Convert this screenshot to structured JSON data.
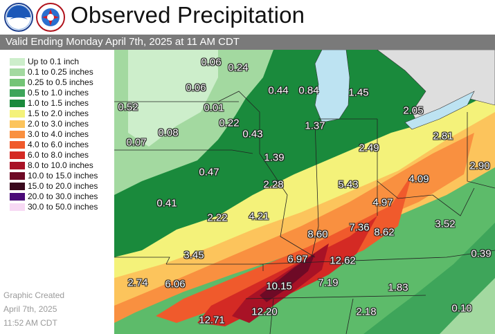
{
  "header": {
    "title": "Observed Precipitation",
    "logo_left_icon": "noaa-logo-icon",
    "logo_right_icon": "nws-logo-icon"
  },
  "valid_bar": {
    "text": "Valid Ending Monday April 7th, 2025 at 11 AM CDT"
  },
  "legend": {
    "items": [
      {
        "label": "Up to 0.1 inch",
        "color": "#cdeecb"
      },
      {
        "label": "0.1 to 0.25 inches",
        "color": "#a3d9a0"
      },
      {
        "label": "0.25 to 0.5 inches",
        "color": "#74c476"
      },
      {
        "label": "0.5 to 1.0 inches",
        "color": "#3ea55a"
      },
      {
        "label": "1.0 to 1.5 inches",
        "color": "#1a8a3c"
      },
      {
        "label": "1.5 to 2.0 inches",
        "color": "#f4f27a"
      },
      {
        "label": "2.0 to 3.0 inches",
        "color": "#fcc45c"
      },
      {
        "label": "3.0 to 4.0 inches",
        "color": "#f99040"
      },
      {
        "label": "4.0 to 6.0 inches",
        "color": "#f05a2c"
      },
      {
        "label": "6.0 to 8.0 inches",
        "color": "#d42a24"
      },
      {
        "label": "8.0 to 10.0 inches",
        "color": "#a81226"
      },
      {
        "label": "10.0 to 15.0 inches",
        "color": "#6e0a26"
      },
      {
        "label": "15.0 to 20.0 inches",
        "color": "#3a0a1e"
      },
      {
        "label": "20.0 to 30.0 inches",
        "color": "#4a0a78"
      },
      {
        "label": "30.0 to 50.0 inches",
        "color": "#f7d9f4"
      }
    ]
  },
  "credit": {
    "line1": "Graphic Created",
    "line2": "April 7th, 2025",
    "line3": "11:52 AM CDT"
  },
  "map": {
    "lake_color": "#bde3f2",
    "canada_color": "#dedede",
    "values": [
      "0.06",
      "0.24",
      "0.06",
      "0.44",
      "0.84",
      "1.45",
      "0.52",
      "0.01",
      "2.05",
      "0.22",
      "1.37",
      "2.81",
      "0.08",
      "0.43",
      "0.07",
      "2.49",
      "1.39",
      "2.90",
      "0.47",
      "5.43",
      "4.09",
      "2.28",
      "0.41",
      "4.97",
      "2.22",
      "4.21",
      "7.36",
      "8.62",
      "3.52",
      "8.60",
      "3.45",
      "6.97",
      "12.62",
      "0.39",
      "2.74",
      "6.06",
      "7.19",
      "10.15",
      "1.83",
      "0.10",
      "12.20",
      "2.18",
      "12.71"
    ]
  }
}
